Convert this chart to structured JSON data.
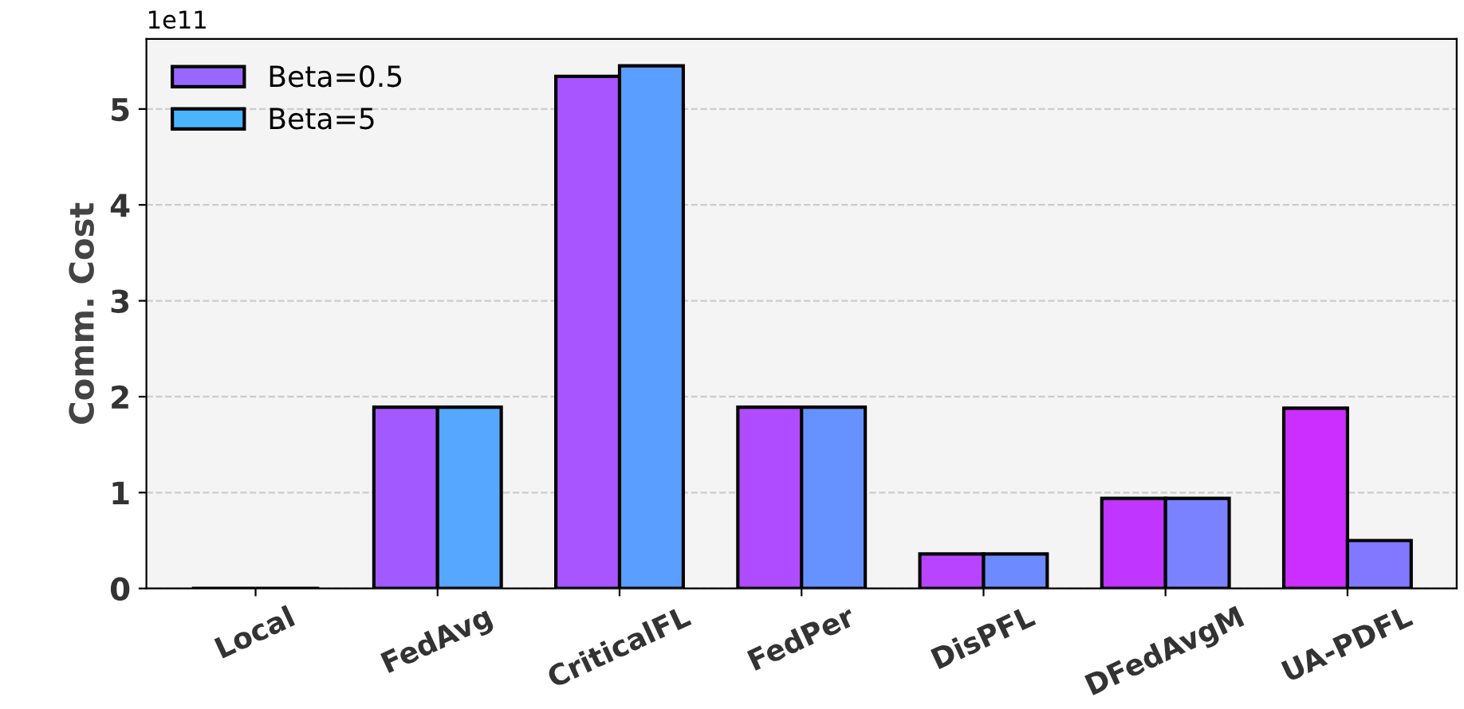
{
  "chart_data": {
    "type": "bar",
    "ylabel": "Comm. Cost",
    "annotations": [
      "1e11"
    ],
    "categories": [
      "Local",
      "FedAvg",
      "CriticalFL",
      "FedPer",
      "DisPFL",
      "DFedAvgM",
      "UA-PDFL"
    ],
    "series": [
      {
        "name": "Beta=0.5",
        "color": "#9966ff",
        "colors": [
          "#000000",
          "#a259ff",
          "#a855ff",
          "#b04cff",
          "#b944ff",
          "#c035ff",
          "#cc2eff"
        ],
        "values": [
          0,
          1.89,
          5.34,
          1.89,
          0.36,
          0.94,
          1.88
        ]
      },
      {
        "name": "Beta=5",
        "color": "#4cb3ff",
        "colors": [
          "#000000",
          "#55a7ff",
          "#5a9fff",
          "#6592ff",
          "#6e8aff",
          "#7a82ff",
          "#8278ff"
        ],
        "values": [
          0,
          1.89,
          5.45,
          1.89,
          0.36,
          0.94,
          0.5
        ]
      }
    ],
    "ylim": [
      0,
      5.73
    ],
    "yticks": [
      0,
      1,
      2,
      3,
      4,
      5
    ],
    "grid": "y",
    "legend": "top left"
  }
}
